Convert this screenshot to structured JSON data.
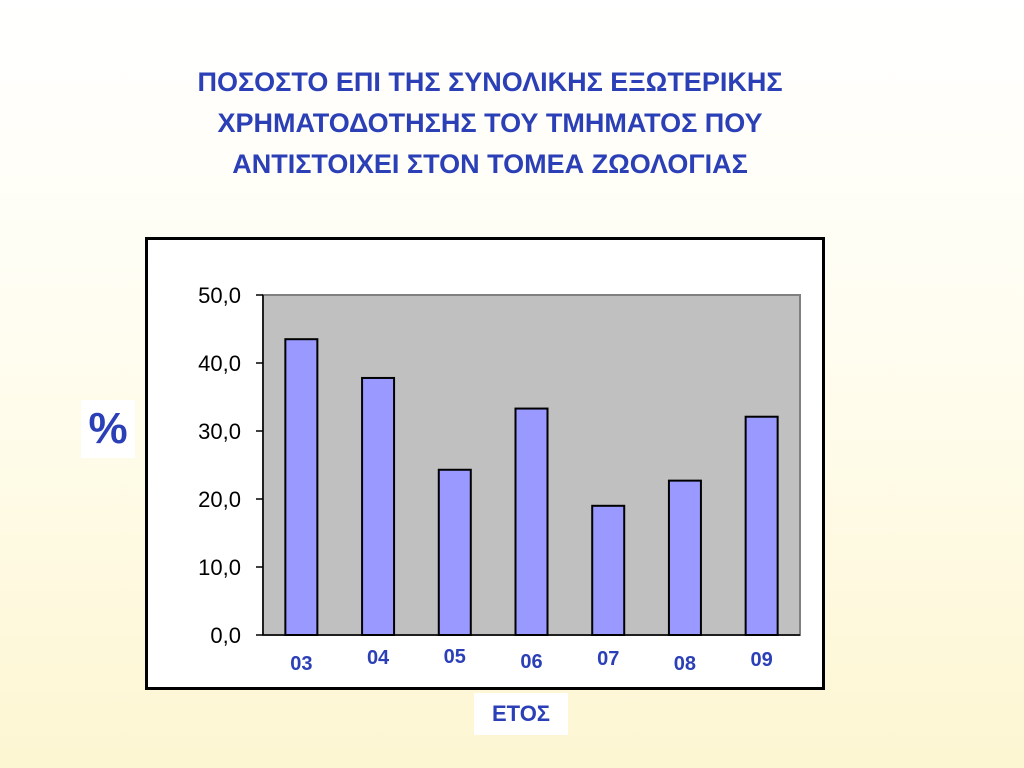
{
  "title_lines": [
    "ΠΟΣΟΣΤΟ ΕΠΙ ΤΗΣ ΣΥΝΟΛΙΚΗΣ ΕΞΩΤΕΡΙΚΗΣ",
    "ΧΡΗΜΑΤΟΔΟΤΗΣΗΣ ΤΟΥ ΤΜΗΜΑΤΟΣ ΠΟΥ",
    "ΑΝΤΙΣΤΟΙΧΕΙ ΣΤΟΝ ΤΟΜΕΑ ΖΩΟΛΟΓΙΑΣ"
  ],
  "colors": {
    "title": "#2b3fb7",
    "bar_fill": "#9999ff",
    "plot_background": "#c0c0c0",
    "label_text": "#2b3fb7"
  },
  "chart_data": {
    "type": "bar",
    "title": "ΠΟΣΟΣΤΟ ΕΠΙ ΤΗΣ ΣΥΝΟΛΙΚΗΣ ΕΞΩΤΕΡΙΚΗΣ ΧΡΗΜΑΤΟΔΟΤΗΣΗΣ ΤΟΥ ΤΜΗΜΑΤΟΣ ΠΟΥ ΑΝΤΙΣΤΟΙΧΕΙ ΣΤΟΝ ΤΟΜΕΑ ΖΩΟΛΟΓΙΑΣ",
    "xlabel": "ΕΤΟΣ",
    "ylabel": "%",
    "categories": [
      "03",
      "04",
      "05",
      "06",
      "07",
      "08",
      "09"
    ],
    "values": [
      43.5,
      37.8,
      24.3,
      33.3,
      19.0,
      22.7,
      32.1
    ],
    "ylim": [
      0,
      50
    ],
    "yticks": [
      "0,0",
      "10,0",
      "20,0",
      "30,0",
      "40,0",
      "50,0"
    ],
    "grid": false,
    "legend": "none"
  }
}
